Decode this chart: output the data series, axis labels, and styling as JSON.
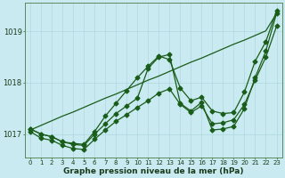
{
  "xlabel": "Graphe pression niveau de la mer (hPa)",
  "bg_color": "#c8eaf0",
  "grid_color": "#b0d8e0",
  "line_color": "#1a5c1a",
  "hours": [
    0,
    1,
    2,
    3,
    4,
    5,
    6,
    7,
    8,
    9,
    10,
    11,
    12,
    13,
    14,
    15,
    16,
    17,
    18,
    19,
    20,
    21,
    22,
    23
  ],
  "trend_line": [
    1017.08,
    1017.17,
    1017.26,
    1017.35,
    1017.43,
    1017.52,
    1017.61,
    1017.7,
    1017.78,
    1017.87,
    1017.96,
    1018.05,
    1018.13,
    1018.22,
    1018.31,
    1018.4,
    1018.48,
    1018.57,
    1018.66,
    1018.75,
    1018.83,
    1018.92,
    1019.01,
    1019.35
  ],
  "line_peak": [
    1017.1,
    1017.0,
    1016.95,
    1016.85,
    1016.82,
    1016.8,
    1017.05,
    1017.35,
    1017.6,
    1017.85,
    1018.1,
    1018.32,
    1018.52,
    1018.45,
    1017.9,
    1017.65,
    1017.72,
    1017.45,
    1017.4,
    1017.42,
    1017.82,
    1018.42,
    1018.8,
    1019.4
  ],
  "line_zigzag": [
    1017.1,
    1017.0,
    1016.95,
    1016.85,
    1016.8,
    1016.78,
    1017.0,
    1017.2,
    1017.4,
    1017.55,
    1017.7,
    1018.28,
    1018.5,
    1018.55,
    1017.6,
    1017.45,
    1017.62,
    1017.08,
    1017.1,
    1017.15,
    1017.5,
    1018.1,
    1018.62,
    1019.35
  ],
  "line_low": [
    1017.05,
    1016.92,
    1016.88,
    1016.78,
    1016.72,
    1016.7,
    1016.9,
    1017.08,
    1017.25,
    1017.38,
    1017.52,
    1017.65,
    1017.8,
    1017.88,
    1017.58,
    1017.42,
    1017.55,
    1017.2,
    1017.22,
    1017.28,
    1017.58,
    1018.05,
    1018.5,
    1019.1
  ],
  "ylim_min": 1016.55,
  "ylim_max": 1019.55,
  "yticks": [
    1017.0,
    1018.0,
    1019.0
  ],
  "marker": "D",
  "marker_size": 2.5,
  "lw": 0.9
}
